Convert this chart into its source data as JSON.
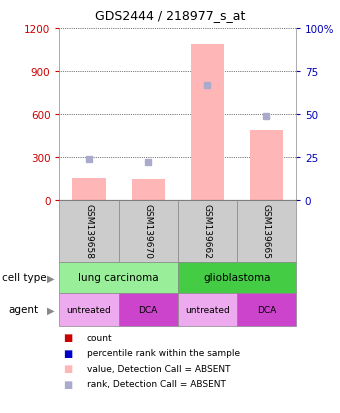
{
  "title": "GDS2444 / 218977_s_at",
  "samples": [
    "GSM139658",
    "GSM139670",
    "GSM139662",
    "GSM139665"
  ],
  "bar_values": [
    155,
    145,
    1085,
    485
  ],
  "rank_values": [
    24,
    22,
    67,
    49
  ],
  "left_ylim": [
    0,
    1200
  ],
  "right_ylim": [
    0,
    100
  ],
  "left_ticks": [
    0,
    300,
    600,
    900,
    1200
  ],
  "right_ticks": [
    0,
    25,
    50,
    75,
    100
  ],
  "right_tick_labels": [
    "0",
    "25",
    "50",
    "75",
    "100%"
  ],
  "bar_color": "#FFB6B6",
  "rank_color": "#AAAACC",
  "cell_types": [
    {
      "label": "lung carcinoma",
      "color": "#99EE99",
      "span": [
        0,
        2
      ]
    },
    {
      "label": "glioblastoma",
      "color": "#44CC44",
      "span": [
        2,
        4
      ]
    }
  ],
  "agents": [
    {
      "label": "untreated",
      "color": "#EEAAEE",
      "span": [
        0,
        1
      ]
    },
    {
      "label": "DCA",
      "color": "#CC44CC",
      "span": [
        1,
        2
      ]
    },
    {
      "label": "untreated",
      "color": "#EEAAEE",
      "span": [
        2,
        3
      ]
    },
    {
      "label": "DCA",
      "color": "#CC44CC",
      "span": [
        3,
        4
      ]
    }
  ],
  "cell_type_label": "cell type",
  "agent_label": "agent",
  "legend_items": [
    {
      "label": "count",
      "color": "#CC0000"
    },
    {
      "label": "percentile rank within the sample",
      "color": "#0000CC"
    },
    {
      "label": "value, Detection Call = ABSENT",
      "color": "#FFB6B6"
    },
    {
      "label": "rank, Detection Call = ABSENT",
      "color": "#AAAACC"
    }
  ],
  "left_axis_color": "#CC0000",
  "right_axis_color": "#0000BB",
  "background_color": "#FFFFFF",
  "sample_box_color": "#CCCCCC",
  "bar_width": 0.28,
  "fig_width": 3.4,
  "fig_height": 4.14,
  "dpi": 100
}
